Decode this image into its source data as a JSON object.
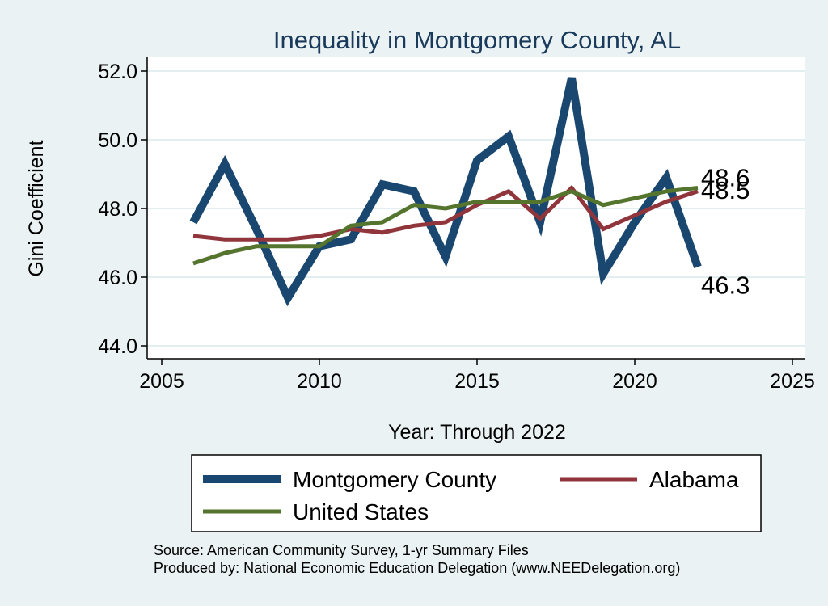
{
  "chart_data": {
    "type": "line",
    "title": "Inequality in Montgomery County, AL",
    "xlabel": "Year: Through 2022",
    "ylabel": "Gini Coefficient",
    "xlim": [
      2005,
      2025
    ],
    "ylim": [
      44,
      52
    ],
    "x_ticks": [
      "2005",
      "2010",
      "2015",
      "2020",
      "2025"
    ],
    "y_ticks": [
      "44.0",
      "46.0",
      "48.0",
      "50.0",
      "52.0"
    ],
    "grid": true,
    "legend_position": "bottom",
    "x": [
      2006,
      2007,
      2008,
      2009,
      2010,
      2011,
      2012,
      2013,
      2014,
      2015,
      2016,
      2017,
      2018,
      2019,
      2020,
      2021,
      2022
    ],
    "series": [
      {
        "name": "Montgomery County",
        "color": "#1a476f",
        "values": [
          47.6,
          49.3,
          47.4,
          45.4,
          46.9,
          47.1,
          48.7,
          48.5,
          46.6,
          49.4,
          50.1,
          47.6,
          51.8,
          46.1,
          47.6,
          48.9,
          46.3
        ],
        "end_label": "46.3"
      },
      {
        "name": "Alabama",
        "color": "#90353b",
        "values": [
          47.2,
          47.1,
          47.1,
          47.1,
          47.2,
          47.4,
          47.3,
          47.5,
          47.6,
          48.1,
          48.5,
          47.7,
          48.6,
          47.4,
          47.8,
          48.2,
          48.5
        ],
        "end_label": "48.5"
      },
      {
        "name": "United States",
        "color": "#55752f",
        "values": [
          46.4,
          46.7,
          46.9,
          46.9,
          46.9,
          47.5,
          47.6,
          48.1,
          48.0,
          48.2,
          48.2,
          48.2,
          48.5,
          48.1,
          48.3,
          48.5,
          48.6
        ],
        "end_label": "48.6"
      }
    ],
    "source_lines": [
      "Source: American Community Survey, 1-yr Summary Files",
      "Produced by: National Economic Education Delegation (www.NEEDelegation.org)"
    ]
  }
}
